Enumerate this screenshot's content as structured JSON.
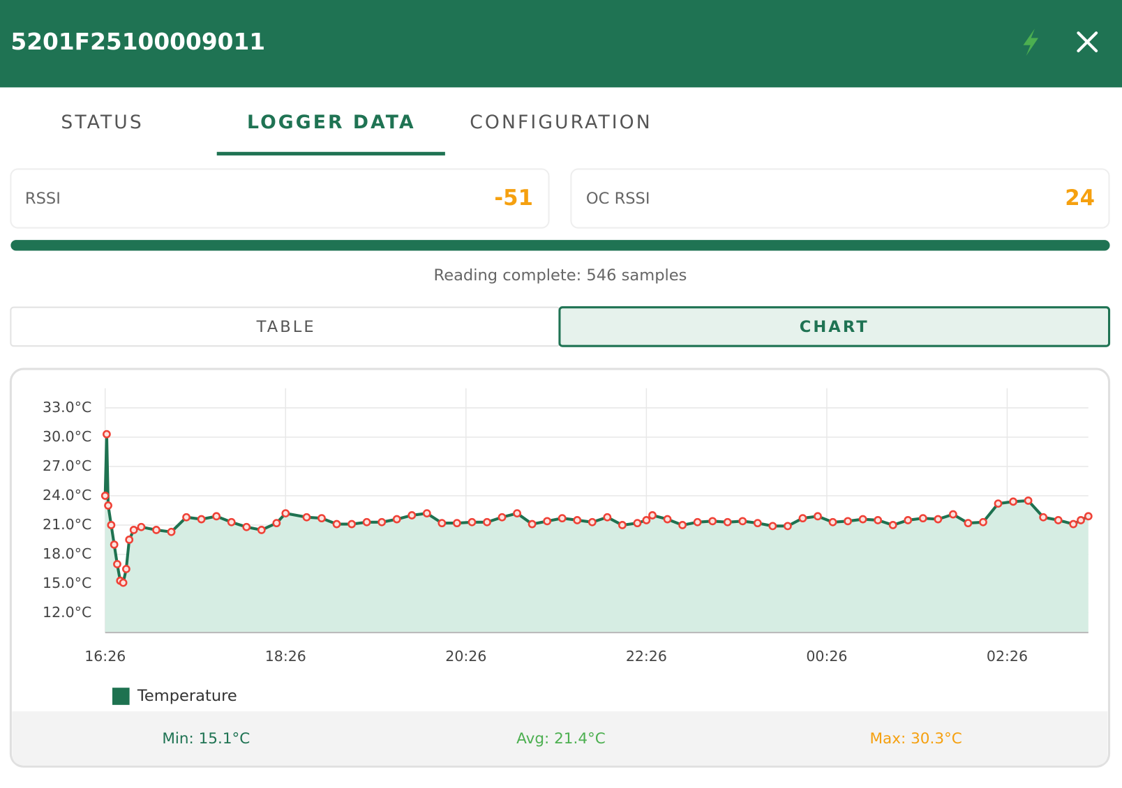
{
  "header": {
    "title": "5201F25100009011"
  },
  "tabs": [
    "STATUS",
    "LOGGER DATA",
    "CONFIGURATION"
  ],
  "rssi": {
    "label": "RSSI",
    "value": -51
  },
  "oc_rssi": {
    "label": "OC RSSI",
    "value": 24
  },
  "status": "Reading complete: 546 samples",
  "view_toggle": [
    "TABLE",
    "CHART"
  ],
  "chart_data": {
    "type": "area",
    "x": [
      "16:26",
      "16:27",
      "16:28",
      "16:30",
      "16:32",
      "16:34",
      "16:36",
      "16:38",
      "16:40",
      "16:42",
      "16:45",
      "16:50",
      "17:00",
      "17:10",
      "17:20",
      "17:30",
      "17:40",
      "17:50",
      "18:00",
      "18:10",
      "18:20",
      "18:26",
      "18:40",
      "18:50",
      "19:00",
      "19:10",
      "19:20",
      "19:30",
      "19:40",
      "19:50",
      "20:00",
      "20:10",
      "20:20",
      "20:30",
      "20:40",
      "20:50",
      "21:00",
      "21:10",
      "21:20",
      "21:30",
      "21:40",
      "21:50",
      "22:00",
      "22:10",
      "22:20",
      "22:26",
      "22:30",
      "22:40",
      "22:50",
      "23:00",
      "23:10",
      "23:20",
      "23:30",
      "23:40",
      "23:50",
      "00:00",
      "00:10",
      "00:20",
      "00:30",
      "00:40",
      "00:50",
      "01:00",
      "01:10",
      "01:20",
      "01:30",
      "01:40",
      "01:50",
      "02:00",
      "02:10",
      "02:20",
      "02:30",
      "02:40",
      "02:50",
      "03:00",
      "03:10",
      "03:15",
      "03:20"
    ],
    "series": [
      {
        "name": "Temperature",
        "color": "#1e7250",
        "marker_color": "#ef4136",
        "values": [
          24.0,
          30.3,
          23.0,
          21.0,
          19.0,
          17.0,
          15.3,
          15.1,
          16.5,
          19.5,
          20.5,
          20.8,
          20.5,
          20.3,
          21.8,
          21.6,
          21.9,
          21.3,
          20.8,
          20.5,
          21.2,
          22.2,
          21.8,
          21.7,
          21.1,
          21.1,
          21.3,
          21.3,
          21.6,
          22.0,
          22.2,
          21.2,
          21.2,
          21.3,
          21.3,
          21.8,
          22.2,
          21.1,
          21.4,
          21.7,
          21.5,
          21.3,
          21.8,
          21.0,
          21.2,
          21.5,
          22.0,
          21.6,
          21.0,
          21.3,
          21.4,
          21.3,
          21.4,
          21.2,
          20.9,
          20.9,
          21.7,
          21.9,
          21.3,
          21.4,
          21.6,
          21.5,
          21.0,
          21.5,
          21.7,
          21.6,
          22.1,
          21.2,
          21.3,
          23.2,
          23.4,
          23.5,
          21.8,
          21.5,
          21.1,
          21.5,
          21.9
        ]
      }
    ],
    "xlim": [
      "16:26",
      "03:20"
    ],
    "xticks": [
      "16:26",
      "18:26",
      "20:26",
      "22:26",
      "00:26",
      "02:26"
    ],
    "ylim": [
      10,
      35
    ],
    "yticks": [
      {
        "value": 12,
        "label": "12.0°C"
      },
      {
        "value": 15,
        "label": "15.0°C"
      },
      {
        "value": 18,
        "label": "18.0°C"
      },
      {
        "value": 21,
        "label": "21.0°C"
      },
      {
        "value": 24,
        "label": "24.0°C"
      },
      {
        "value": 27,
        "label": "27.0°C"
      },
      {
        "value": 30,
        "label": "30.0°C"
      },
      {
        "value": 33,
        "label": "33.0°C"
      }
    ],
    "grid": true,
    "fill_color": "#d6ede3",
    "legend": "bottom-left"
  },
  "stats": [
    "Min: 15.1°C",
    "Avg: 21.4°C",
    "Max: 30.3°C"
  ]
}
